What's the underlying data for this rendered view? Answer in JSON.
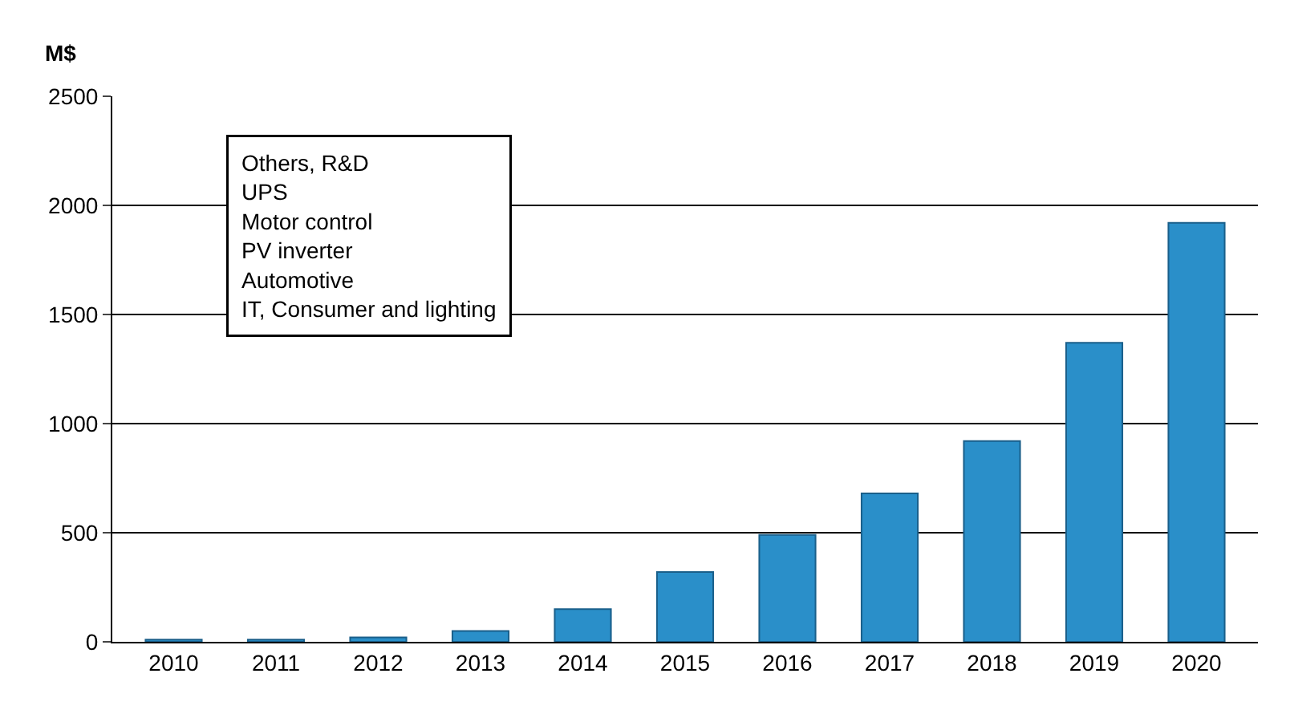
{
  "chart_data": {
    "type": "bar",
    "ylabel": "M$",
    "categories": [
      "2010",
      "2011",
      "2012",
      "2013",
      "2014",
      "2015",
      "2016",
      "2017",
      "2018",
      "2019",
      "2020"
    ],
    "values": [
      10,
      10,
      20,
      50,
      150,
      320,
      490,
      680,
      920,
      1370,
      1920
    ],
    "color": "#2a8fc9",
    "ylim": [
      0,
      2500
    ],
    "yticks": [
      0,
      500,
      1000,
      1500,
      2000,
      2500
    ],
    "grid": "y",
    "annotations": [
      "Others, R&D",
      "UPS",
      "Motor control",
      "PV inverter",
      "Automotive",
      "IT, Consumer and lighting"
    ]
  }
}
